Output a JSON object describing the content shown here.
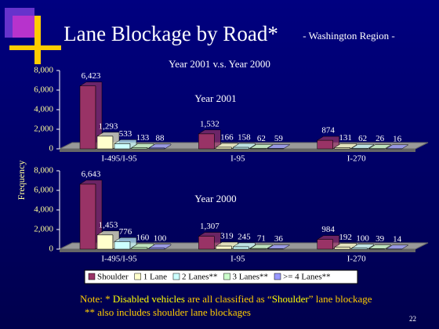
{
  "slide": {
    "title": "Lane Blockage by Road*",
    "subtitle": "- Washington Region -",
    "comparison": "Year 2001 v.s. Year 2000",
    "y_label": "Frequency",
    "note": [
      "Note: * ",
      "Disabled vehicles",
      " are all classified as “",
      "Shoulder",
      "” lane blockage"
    ],
    "note2": "** also includes shoulder lane blockages",
    "page_number": "22"
  },
  "chart_data": [
    {
      "type": "bar",
      "title": "Year 2001",
      "categories": [
        "I-495/I-95",
        "I-95",
        "I-270"
      ],
      "ylim": [
        0,
        8000
      ],
      "yticks": [
        0,
        {
          "value": 2000,
          "label": "2,000"
        },
        {
          "value": 4000,
          "label": "4,000"
        },
        {
          "value": 6000,
          "label": "6,000"
        },
        {
          "value": 8000,
          "label": "8,000"
        }
      ],
      "series": [
        {
          "name": "Shoulder",
          "color": "#993366",
          "values": [
            6423,
            1532,
            874
          ],
          "value_labels": [
            "6,423",
            "1,532",
            "874"
          ]
        },
        {
          "name": "1 Lane",
          "color": "#ffffcc",
          "values": [
            1293,
            166,
            131
          ],
          "value_labels": [
            "1,293",
            "166",
            "131"
          ]
        },
        {
          "name": "2 Lanes**",
          "color": "#ccffff",
          "values": [
            533,
            158,
            62
          ],
          "value_labels": [
            "533",
            "158",
            "62"
          ]
        },
        {
          "name": "3 Lanes**",
          "color": "#ccffcc",
          "values": [
            133,
            62,
            26
          ],
          "value_labels": [
            "133",
            "62",
            "26"
          ]
        },
        {
          "name": ">= 4 Lanes**",
          "color": "#9999ff",
          "values": [
            88,
            59,
            16
          ],
          "value_labels": [
            "88",
            "59",
            "16"
          ]
        }
      ]
    },
    {
      "type": "bar",
      "title": "Year 2000",
      "categories": [
        "I-495/I-95",
        "I-95",
        "I-270"
      ],
      "ylim": [
        0,
        8000
      ],
      "yticks": [
        0,
        {
          "value": 2000,
          "label": "2,000"
        },
        {
          "value": 4000,
          "label": "4,000"
        },
        {
          "value": 6000,
          "label": "6,000"
        },
        {
          "value": 8000,
          "label": "8,000"
        }
      ],
      "series": [
        {
          "color": "#993366",
          "values": [
            6643,
            1307,
            984
          ],
          "value_labels": [
            "6,643",
            "1,307",
            "984"
          ]
        },
        {
          "color": "#ffffcc",
          "values": [
            1453,
            319,
            192
          ],
          "value_labels": [
            "1,453",
            "319",
            "192"
          ]
        },
        {
          "color": "#ccffff",
          "values": [
            776,
            245,
            100
          ],
          "value_labels": [
            "776",
            "245",
            "100"
          ]
        },
        {
          "color": "#ccffcc",
          "values": [
            160,
            71,
            39
          ],
          "value_labels": [
            "160",
            "71",
            "39"
          ]
        },
        {
          "color": "#9999ff",
          "values": [
            100,
            36,
            14
          ],
          "value_labels": [
            "100",
            "36",
            "14"
          ]
        }
      ]
    }
  ]
}
